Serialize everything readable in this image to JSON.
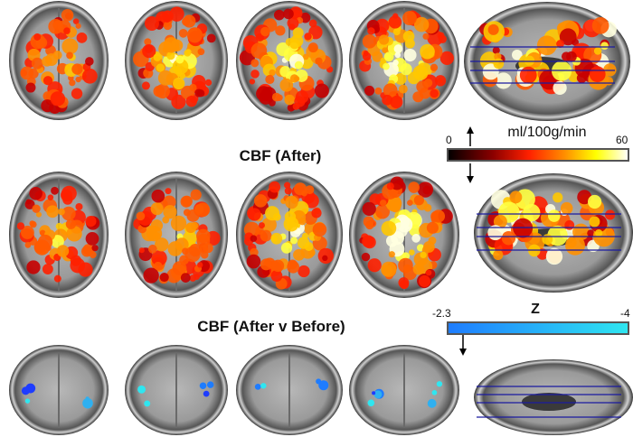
{
  "sections": [
    {
      "title": ""
    },
    {
      "title": "CBF (After)"
    },
    {
      "title": "CBF (After v Before)"
    }
  ],
  "colorbar_cbf": {
    "min_label": "0",
    "max_label": "60",
    "unit": "ml/100g/min",
    "colormap": [
      "#000000",
      "#8b0000",
      "#ff2000",
      "#ff9000",
      "#ffff00",
      "#ffffff"
    ]
  },
  "colorbar_z": {
    "min_label": "-2.3",
    "max_label": "-4",
    "unit": "Z",
    "colormap": [
      "#1e7cff",
      "#2fe6f0"
    ]
  },
  "colors": {
    "slice_line": "#1a1aa0",
    "background": "#ffffff"
  }
}
